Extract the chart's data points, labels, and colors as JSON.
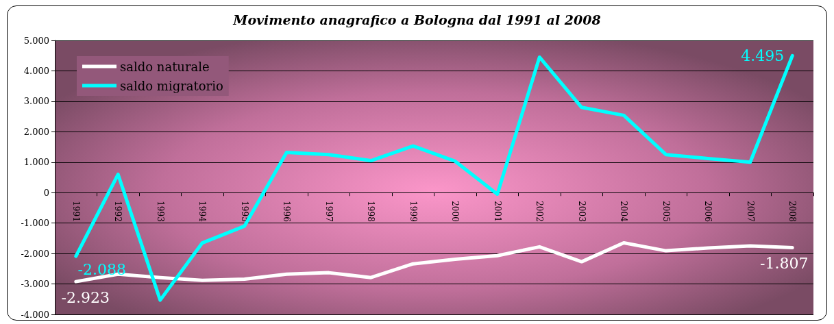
{
  "chart_data": {
    "type": "line",
    "title": "Movimento anagrafico a Bologna dal 1991 al 2008",
    "categories": [
      "1991",
      "1992",
      "1993",
      "1994",
      "1995",
      "1996",
      "1997",
      "1998",
      "1999",
      "2000",
      "2001",
      "2002",
      "2003",
      "2004",
      "2005",
      "2006",
      "2007",
      "2008"
    ],
    "series": [
      {
        "name": "saldo naturale",
        "color": "#ffffff",
        "values": [
          -2923,
          -2680,
          -2790,
          -2880,
          -2840,
          -2680,
          -2630,
          -2790,
          -2340,
          -2190,
          -2070,
          -1780,
          -2270,
          -1650,
          -1910,
          -1820,
          -1750,
          -1807
        ],
        "value_labels": [
          "-2.923",
          null,
          null,
          null,
          null,
          null,
          null,
          null,
          null,
          null,
          null,
          null,
          null,
          null,
          null,
          null,
          null,
          "-1.807"
        ]
      },
      {
        "name": "saldo migratorio",
        "color": "#00ffff",
        "values": [
          -2088,
          600,
          -3530,
          -1650,
          -1100,
          1320,
          1250,
          1050,
          1530,
          1030,
          -50,
          4450,
          2800,
          2540,
          1250,
          1120,
          1000,
          4495
        ],
        "value_labels": [
          "-2.088",
          null,
          null,
          null,
          null,
          null,
          null,
          null,
          null,
          null,
          null,
          null,
          null,
          null,
          null,
          null,
          null,
          "4.495"
        ]
      }
    ],
    "ylim": [
      -4000,
      5000
    ],
    "yticks": [
      {
        "value": -4000,
        "label": "-4.000"
      },
      {
        "value": -3000,
        "label": "-3.000"
      },
      {
        "value": -2000,
        "label": "-2.000"
      },
      {
        "value": -1000,
        "label": "-1.000"
      },
      0,
      {
        "value": 1000,
        "label": "1.000"
      },
      {
        "value": 2000,
        "label": "2.000"
      },
      {
        "value": 3000,
        "label": "3.000"
      },
      {
        "value": 4000,
        "label": "4.000"
      },
      {
        "value": 5000,
        "label": "5.000"
      }
    ],
    "grid": "y",
    "legend": "top left",
    "line_style": "solid"
  }
}
